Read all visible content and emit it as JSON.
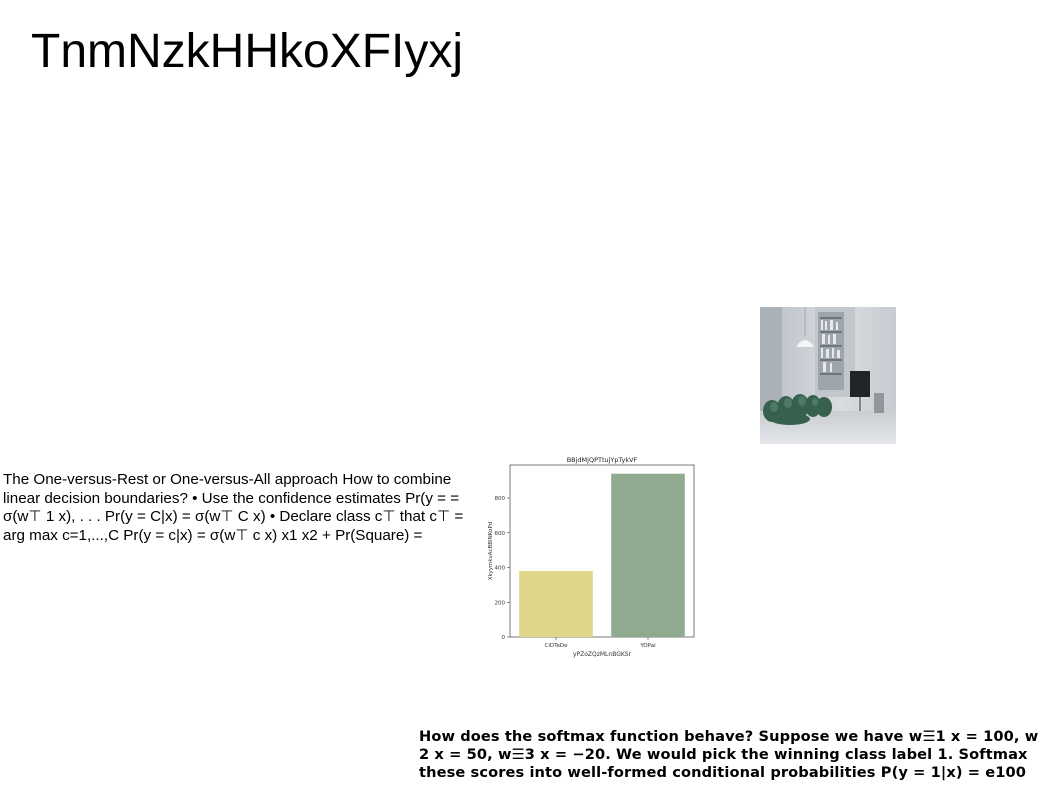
{
  "page": {
    "title": "TnmNzkHHkoXFIyxj"
  },
  "body_text": "The One-versus-Rest or One-versus-All approach How to combine linear decision boundaries? • Use the confidence estimates Pr(y = = σ(w⊤ 1 x), . . . Pr(y = C|x) = σ(w⊤ C x) • Declare class c⊤ that c⊤ = arg max c=1,...,C Pr(y = c|x) = σ(w⊤ c x) x1 x2 + Pr(Square) =",
  "bottom_text": {
    "line1": "How does the softmax function behave? Suppose we have w☰1 x = 100, w",
    "line2": "2 x = 50, w☰3 x = −20. We would pick the winning class label 1. Softmax",
    "line3": "these scores into well-formed conditional probabilities P(y = 1|x) = e100"
  },
  "chart_data": {
    "type": "bar",
    "title": "BBjdMjQPTtujYpTykVF",
    "xlabel": "yPZoZQzMLnBGKSr",
    "ylabel": "XkyymkvAcBBINKoPd",
    "categories": [
      "CiDTeDe",
      "YOPai"
    ],
    "values": [
      380,
      940
    ],
    "ylim": [
      0,
      990
    ],
    "yticks": [
      0,
      200,
      400,
      600,
      800
    ],
    "bar_colors": [
      "#dfd68a",
      "#8faa8e"
    ],
    "grid": false
  },
  "colors": {
    "text": "#000000",
    "background": "#ffffff"
  }
}
